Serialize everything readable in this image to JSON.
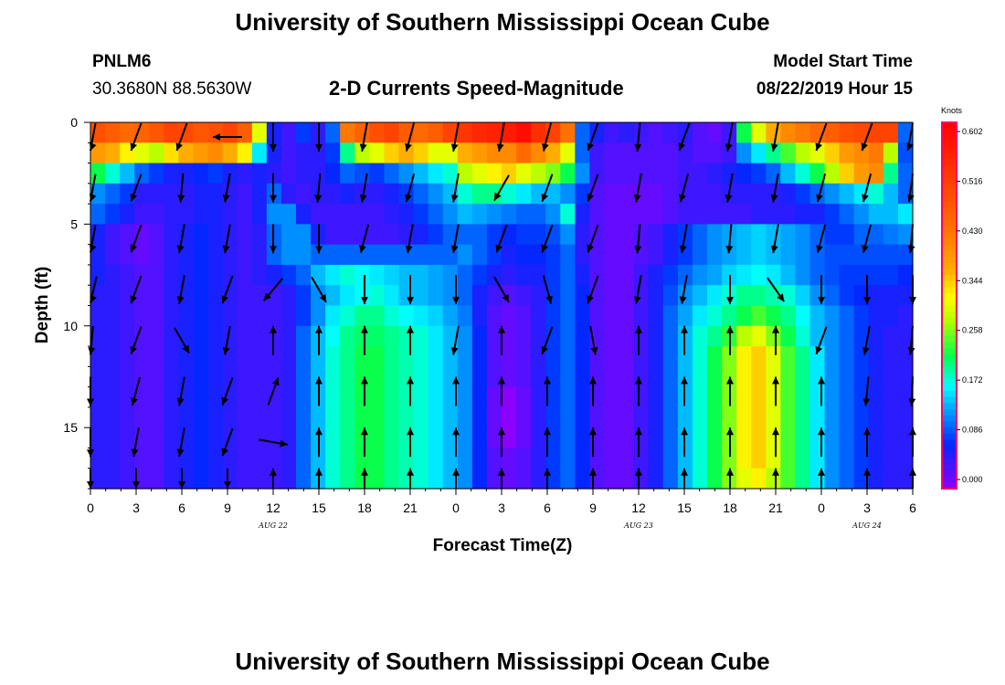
{
  "header": {
    "title": "University of Southern Mississippi Ocean Cube",
    "station_id": "PNLM6",
    "station_coords": "30.3680N 88.5630W",
    "plot_title": "2-D Currents Speed-Magnitude",
    "model_label": "Model Start Time",
    "model_time": "08/22/2019 Hour 15"
  },
  "footer": {
    "title": "University of Southern Mississippi Ocean Cube"
  },
  "colors": {
    "low": "#8a00ff",
    "mid_low": "#0040ff",
    "mid": "#00ff40",
    "mid_high": "#ffff00",
    "high": "#ff0000",
    "colorbar_frame": "#ff0066"
  },
  "chart_data": {
    "type": "heatmap",
    "xlabel": "Forecast Time(Z)",
    "ylabel": "Depth (ft)",
    "x_tick_labels": [
      "0",
      "3",
      "6",
      "9",
      "12",
      "15",
      "18",
      "21",
      "0",
      "3",
      "6",
      "9",
      "12",
      "15",
      "18",
      "21",
      "0",
      "3",
      "6"
    ],
    "x_range_hours": [
      0,
      54
    ],
    "date_labels": [
      {
        "text": "AUG 22",
        "hour": 12
      },
      {
        "text": "AUG 23",
        "hour": 36
      },
      {
        "text": "AUG 24",
        "hour": 51
      }
    ],
    "y_ticks": [
      "0",
      "5",
      "10",
      "15"
    ],
    "y_range": [
      0,
      18
    ],
    "y_reversed": true,
    "colorbar": {
      "unit": "Knots",
      "tick_labels": [
        "0.602",
        "0.516",
        "0.430",
        "0.344",
        "0.258",
        "0.172",
        "0.086",
        "0.000"
      ],
      "range": [
        0,
        0.602
      ]
    },
    "arrow_columns_hours": [
      0,
      3,
      6,
      9,
      12,
      15,
      18,
      21,
      24,
      27,
      30,
      33,
      36,
      39,
      42,
      45,
      48,
      51,
      54
    ],
    "arrow_rows_depth_ft": [
      0,
      2.5,
      5,
      7.5,
      10,
      12.5,
      15,
      17
    ],
    "speed_knots": [
      [
        0.48,
        0.46,
        0.44,
        0.45,
        0.47,
        0.5,
        0.49,
        0.47,
        0.48,
        0.5,
        0.46,
        0.3,
        0.06,
        0.04,
        0.08,
        0.05,
        0.1,
        0.42,
        0.45,
        0.48,
        0.5,
        0.46,
        0.44,
        0.46,
        0.5,
        0.52,
        0.54,
        0.55,
        0.56,
        0.58,
        0.53,
        0.5,
        0.43,
        0.1,
        0.06,
        0.04,
        0.05,
        0.04,
        0.03,
        0.04,
        0.05,
        0.03,
        0.02,
        0.04,
        0.22,
        0.3,
        0.36,
        0.4,
        0.42,
        0.44,
        0.46,
        0.48,
        0.49,
        0.5,
        0.5,
        0.1
      ],
      [
        0.38,
        0.36,
        0.32,
        0.3,
        0.28,
        0.33,
        0.36,
        0.38,
        0.4,
        0.36,
        0.32,
        0.16,
        0.06,
        0.04,
        0.05,
        0.05,
        0.08,
        0.2,
        0.28,
        0.3,
        0.34,
        0.36,
        0.34,
        0.3,
        0.3,
        0.36,
        0.38,
        0.4,
        0.4,
        0.44,
        0.4,
        0.36,
        0.3,
        0.1,
        0.04,
        0.03,
        0.03,
        0.03,
        0.03,
        0.03,
        0.04,
        0.03,
        0.03,
        0.04,
        0.12,
        0.16,
        0.2,
        0.24,
        0.28,
        0.3,
        0.34,
        0.38,
        0.4,
        0.42,
        0.28,
        0.09
      ],
      [
        0.22,
        0.18,
        0.14,
        0.1,
        0.08,
        0.06,
        0.06,
        0.07,
        0.08,
        0.06,
        0.05,
        0.06,
        0.05,
        0.04,
        0.05,
        0.05,
        0.07,
        0.1,
        0.09,
        0.08,
        0.1,
        0.12,
        0.14,
        0.16,
        0.18,
        0.28,
        0.3,
        0.32,
        0.34,
        0.3,
        0.28,
        0.26,
        0.22,
        0.12,
        0.04,
        0.03,
        0.03,
        0.03,
        0.03,
        0.03,
        0.04,
        0.04,
        0.05,
        0.06,
        0.07,
        0.08,
        0.1,
        0.14,
        0.18,
        0.22,
        0.28,
        0.34,
        0.38,
        0.4,
        0.2,
        0.1
      ],
      [
        0.12,
        0.1,
        0.08,
        0.05,
        0.05,
        0.05,
        0.05,
        0.06,
        0.06,
        0.05,
        0.04,
        0.06,
        0.1,
        0.05,
        0.04,
        0.05,
        0.05,
        0.06,
        0.05,
        0.05,
        0.06,
        0.08,
        0.1,
        0.12,
        0.14,
        0.18,
        0.2,
        0.2,
        0.18,
        0.16,
        0.14,
        0.14,
        0.12,
        0.08,
        0.03,
        0.02,
        0.02,
        0.02,
        0.02,
        0.03,
        0.04,
        0.04,
        0.04,
        0.05,
        0.05,
        0.05,
        0.05,
        0.06,
        0.08,
        0.1,
        0.12,
        0.14,
        0.16,
        0.18,
        0.14,
        0.1
      ],
      [
        0.1,
        0.08,
        0.06,
        0.04,
        0.04,
        0.05,
        0.05,
        0.06,
        0.06,
        0.05,
        0.04,
        0.06,
        0.12,
        0.12,
        0.06,
        0.04,
        0.04,
        0.04,
        0.04,
        0.04,
        0.05,
        0.06,
        0.08,
        0.1,
        0.12,
        0.14,
        0.13,
        0.12,
        0.11,
        0.1,
        0.1,
        0.12,
        0.18,
        0.06,
        0.03,
        0.02,
        0.02,
        0.02,
        0.02,
        0.03,
        0.04,
        0.04,
        0.04,
        0.04,
        0.04,
        0.05,
        0.05,
        0.05,
        0.06,
        0.06,
        0.08,
        0.1,
        0.12,
        0.14,
        0.14,
        0.16
      ],
      [
        0.06,
        0.04,
        0.03,
        0.02,
        0.03,
        0.05,
        0.06,
        0.07,
        0.06,
        0.05,
        0.04,
        0.05,
        0.1,
        0.12,
        0.12,
        0.06,
        0.04,
        0.04,
        0.04,
        0.04,
        0.04,
        0.05,
        0.06,
        0.08,
        0.1,
        0.1,
        0.1,
        0.08,
        0.07,
        0.08,
        0.08,
        0.09,
        0.12,
        0.05,
        0.03,
        0.02,
        0.02,
        0.03,
        0.04,
        0.06,
        0.08,
        0.1,
        0.12,
        0.13,
        0.14,
        0.15,
        0.14,
        0.13,
        0.12,
        0.1,
        0.08,
        0.08,
        0.1,
        0.1,
        0.11,
        0.12
      ],
      [
        0.06,
        0.04,
        0.03,
        0.02,
        0.03,
        0.05,
        0.06,
        0.07,
        0.06,
        0.05,
        0.04,
        0.05,
        0.1,
        0.12,
        0.12,
        0.1,
        0.1,
        0.1,
        0.1,
        0.1,
        0.1,
        0.1,
        0.1,
        0.1,
        0.1,
        0.12,
        0.1,
        0.08,
        0.06,
        0.07,
        0.07,
        0.08,
        0.1,
        0.05,
        0.03,
        0.02,
        0.02,
        0.03,
        0.04,
        0.06,
        0.08,
        0.1,
        0.12,
        0.13,
        0.14,
        0.15,
        0.14,
        0.13,
        0.12,
        0.1,
        0.09,
        0.09,
        0.09,
        0.09,
        0.09,
        0.09
      ],
      [
        0.06,
        0.05,
        0.04,
        0.03,
        0.03,
        0.05,
        0.06,
        0.07,
        0.06,
        0.05,
        0.04,
        0.05,
        0.06,
        0.08,
        0.1,
        0.14,
        0.16,
        0.18,
        0.17,
        0.16,
        0.15,
        0.14,
        0.14,
        0.13,
        0.12,
        0.1,
        0.08,
        0.06,
        0.05,
        0.06,
        0.06,
        0.08,
        0.1,
        0.06,
        0.03,
        0.02,
        0.02,
        0.04,
        0.06,
        0.08,
        0.1,
        0.12,
        0.13,
        0.15,
        0.16,
        0.17,
        0.16,
        0.14,
        0.12,
        0.1,
        0.09,
        0.08,
        0.08,
        0.08,
        0.08,
        0.07
      ],
      [
        0.05,
        0.05,
        0.04,
        0.03,
        0.03,
        0.05,
        0.06,
        0.07,
        0.06,
        0.05,
        0.04,
        0.04,
        0.04,
        0.05,
        0.08,
        0.12,
        0.14,
        0.16,
        0.17,
        0.18,
        0.16,
        0.14,
        0.14,
        0.13,
        0.12,
        0.1,
        0.06,
        0.04,
        0.03,
        0.04,
        0.05,
        0.08,
        0.1,
        0.07,
        0.03,
        0.02,
        0.02,
        0.04,
        0.06,
        0.09,
        0.12,
        0.14,
        0.16,
        0.18,
        0.2,
        0.2,
        0.19,
        0.18,
        0.15,
        0.12,
        0.1,
        0.08,
        0.07,
        0.06,
        0.06,
        0.06
      ],
      [
        0.05,
        0.05,
        0.04,
        0.03,
        0.03,
        0.05,
        0.06,
        0.07,
        0.06,
        0.05,
        0.04,
        0.04,
        0.04,
        0.05,
        0.08,
        0.12,
        0.16,
        0.18,
        0.2,
        0.2,
        0.18,
        0.17,
        0.16,
        0.15,
        0.13,
        0.11,
        0.06,
        0.03,
        0.02,
        0.03,
        0.05,
        0.08,
        0.1,
        0.07,
        0.03,
        0.02,
        0.02,
        0.04,
        0.06,
        0.1,
        0.13,
        0.16,
        0.18,
        0.2,
        0.22,
        0.24,
        0.22,
        0.2,
        0.17,
        0.14,
        0.12,
        0.1,
        0.08,
        0.06,
        0.06,
        0.05
      ],
      [
        0.05,
        0.05,
        0.04,
        0.03,
        0.03,
        0.05,
        0.06,
        0.07,
        0.06,
        0.05,
        0.04,
        0.04,
        0.04,
        0.05,
        0.1,
        0.14,
        0.17,
        0.2,
        0.21,
        0.21,
        0.2,
        0.19,
        0.18,
        0.16,
        0.14,
        0.12,
        0.07,
        0.03,
        0.02,
        0.03,
        0.05,
        0.08,
        0.1,
        0.07,
        0.03,
        0.02,
        0.02,
        0.04,
        0.06,
        0.1,
        0.14,
        0.18,
        0.2,
        0.23,
        0.28,
        0.3,
        0.26,
        0.22,
        0.18,
        0.14,
        0.12,
        0.1,
        0.08,
        0.06,
        0.05,
        0.05
      ],
      [
        0.05,
        0.05,
        0.04,
        0.03,
        0.03,
        0.05,
        0.06,
        0.07,
        0.06,
        0.05,
        0.04,
        0.04,
        0.04,
        0.05,
        0.1,
        0.14,
        0.18,
        0.2,
        0.22,
        0.22,
        0.2,
        0.19,
        0.18,
        0.16,
        0.14,
        0.12,
        0.07,
        0.03,
        0.02,
        0.03,
        0.05,
        0.08,
        0.1,
        0.07,
        0.03,
        0.02,
        0.02,
        0.04,
        0.06,
        0.1,
        0.14,
        0.18,
        0.22,
        0.26,
        0.32,
        0.34,
        0.3,
        0.24,
        0.2,
        0.16,
        0.12,
        0.1,
        0.08,
        0.06,
        0.05,
        0.05
      ],
      [
        0.05,
        0.05,
        0.04,
        0.03,
        0.03,
        0.05,
        0.06,
        0.07,
        0.06,
        0.05,
        0.04,
        0.04,
        0.04,
        0.05,
        0.1,
        0.14,
        0.18,
        0.2,
        0.22,
        0.22,
        0.2,
        0.19,
        0.18,
        0.16,
        0.14,
        0.12,
        0.07,
        0.03,
        0.02,
        0.03,
        0.05,
        0.08,
        0.1,
        0.07,
        0.03,
        0.02,
        0.02,
        0.04,
        0.06,
        0.1,
        0.14,
        0.18,
        0.22,
        0.26,
        0.32,
        0.34,
        0.3,
        0.24,
        0.2,
        0.16,
        0.12,
        0.1,
        0.08,
        0.06,
        0.05,
        0.05
      ],
      [
        0.05,
        0.05,
        0.04,
        0.03,
        0.03,
        0.05,
        0.06,
        0.07,
        0.06,
        0.05,
        0.04,
        0.04,
        0.04,
        0.05,
        0.1,
        0.14,
        0.18,
        0.2,
        0.22,
        0.22,
        0.2,
        0.19,
        0.18,
        0.16,
        0.14,
        0.12,
        0.07,
        0.02,
        0.0,
        0.02,
        0.05,
        0.08,
        0.1,
        0.07,
        0.03,
        0.02,
        0.02,
        0.04,
        0.06,
        0.1,
        0.14,
        0.18,
        0.22,
        0.26,
        0.32,
        0.34,
        0.3,
        0.24,
        0.2,
        0.16,
        0.12,
        0.1,
        0.08,
        0.06,
        0.05,
        0.05
      ],
      [
        0.05,
        0.05,
        0.04,
        0.03,
        0.03,
        0.05,
        0.06,
        0.07,
        0.06,
        0.05,
        0.04,
        0.04,
        0.04,
        0.05,
        0.1,
        0.14,
        0.18,
        0.2,
        0.22,
        0.22,
        0.2,
        0.19,
        0.18,
        0.16,
        0.14,
        0.12,
        0.07,
        0.02,
        0.0,
        0.02,
        0.05,
        0.08,
        0.1,
        0.07,
        0.03,
        0.02,
        0.02,
        0.04,
        0.06,
        0.1,
        0.14,
        0.18,
        0.22,
        0.26,
        0.32,
        0.34,
        0.3,
        0.24,
        0.2,
        0.16,
        0.12,
        0.1,
        0.08,
        0.06,
        0.05,
        0.05
      ],
      [
        0.05,
        0.05,
        0.04,
        0.03,
        0.03,
        0.05,
        0.06,
        0.07,
        0.06,
        0.05,
        0.04,
        0.04,
        0.04,
        0.05,
        0.1,
        0.14,
        0.18,
        0.2,
        0.22,
        0.22,
        0.2,
        0.19,
        0.18,
        0.16,
        0.14,
        0.12,
        0.07,
        0.02,
        0.0,
        0.02,
        0.05,
        0.08,
        0.1,
        0.07,
        0.03,
        0.02,
        0.02,
        0.04,
        0.06,
        0.1,
        0.14,
        0.18,
        0.22,
        0.26,
        0.32,
        0.34,
        0.3,
        0.24,
        0.2,
        0.16,
        0.12,
        0.1,
        0.08,
        0.06,
        0.05,
        0.05
      ],
      [
        0.05,
        0.05,
        0.04,
        0.03,
        0.03,
        0.05,
        0.06,
        0.07,
        0.06,
        0.05,
        0.04,
        0.04,
        0.04,
        0.05,
        0.1,
        0.14,
        0.18,
        0.2,
        0.22,
        0.22,
        0.2,
        0.19,
        0.18,
        0.16,
        0.14,
        0.12,
        0.07,
        0.03,
        0.02,
        0.03,
        0.05,
        0.08,
        0.1,
        0.07,
        0.03,
        0.02,
        0.02,
        0.04,
        0.06,
        0.1,
        0.14,
        0.18,
        0.22,
        0.26,
        0.32,
        0.34,
        0.3,
        0.24,
        0.2,
        0.16,
        0.12,
        0.1,
        0.08,
        0.06,
        0.05,
        0.05
      ],
      [
        0.05,
        0.05,
        0.04,
        0.03,
        0.03,
        0.05,
        0.06,
        0.07,
        0.06,
        0.05,
        0.04,
        0.04,
        0.04,
        0.05,
        0.1,
        0.14,
        0.18,
        0.2,
        0.22,
        0.22,
        0.2,
        0.19,
        0.18,
        0.16,
        0.14,
        0.12,
        0.07,
        0.03,
        0.02,
        0.03,
        0.05,
        0.08,
        0.1,
        0.07,
        0.03,
        0.02,
        0.02,
        0.04,
        0.06,
        0.1,
        0.14,
        0.18,
        0.22,
        0.26,
        0.3,
        0.32,
        0.28,
        0.24,
        0.2,
        0.16,
        0.12,
        0.1,
        0.08,
        0.06,
        0.05,
        0.05
      ]
    ],
    "arrow_angles_deg": [
      [
        200,
        200,
        200,
        270,
        180,
        180,
        190,
        195,
        190,
        190,
        195,
        200,
        185,
        200,
        190,
        190,
        200,
        200,
        200
      ],
      [
        200,
        200,
        185,
        190,
        180,
        185,
        190,
        195,
        190,
        210,
        200,
        200,
        190,
        195,
        190,
        190,
        195,
        195,
        195
      ],
      [
        200,
        200,
        190,
        190,
        180,
        180,
        195,
        190,
        190,
        200,
        200,
        200,
        185,
        190,
        185,
        190,
        195,
        195,
        190
      ],
      [
        205,
        200,
        190,
        200,
        220,
        150,
        180,
        180,
        180,
        150,
        165,
        200,
        190,
        190,
        180,
        145,
        180,
        180,
        180
      ],
      [
        190,
        200,
        150,
        190,
        0,
        0,
        0,
        0,
        190,
        0,
        200,
        170,
        0,
        0,
        0,
        0,
        200,
        190,
        190
      ],
      [
        180,
        195,
        190,
        200,
        20,
        0,
        0,
        0,
        0,
        0,
        0,
        0,
        0,
        0,
        0,
        0,
        0,
        185,
        185
      ],
      [
        180,
        190,
        190,
        200,
        100,
        0,
        0,
        0,
        0,
        0,
        0,
        0,
        0,
        0,
        0,
        0,
        0,
        0,
        0
      ],
      [
        180,
        180,
        180,
        180,
        0,
        0,
        0,
        0,
        0,
        0,
        0,
        0,
        0,
        0,
        0,
        0,
        0,
        0,
        0
      ]
    ]
  }
}
